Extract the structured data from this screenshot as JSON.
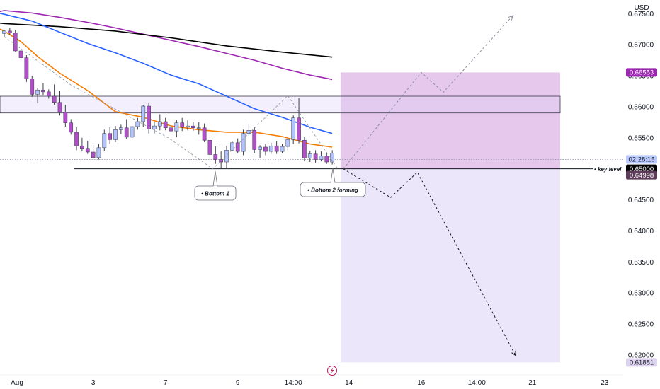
{
  "header": {
    "currency": "USD"
  },
  "chart_data": {
    "type": "candlestick",
    "y_axis": {
      "ticks": [
        "0.67500",
        "0.67000",
        "0.66500",
        "0.66000",
        "0.65500",
        "0.65000",
        "0.64500",
        "0.64000",
        "0.63500",
        "0.63000",
        "0.62500",
        "0.62000"
      ],
      "range": [
        0.6168,
        0.6772
      ]
    },
    "x_axis": {
      "labels": [
        {
          "text": "Aug",
          "bar": 0
        },
        {
          "text": "3",
          "bar": 16
        },
        {
          "text": "7",
          "bar": 29
        },
        {
          "text": "9",
          "bar": 42
        },
        {
          "text": "14:00",
          "bar": 52
        },
        {
          "text": "14",
          "bar": 62
        },
        {
          "text": "16",
          "bar": 75
        },
        {
          "text": "14:00",
          "bar": 85
        },
        {
          "text": "21",
          "bar": 95
        },
        {
          "text": "23",
          "bar": 108
        }
      ]
    },
    "candles": [
      [
        0.6718,
        0.6724,
        0.6713,
        0.6722
      ],
      [
        0.6722,
        0.6727,
        0.6716,
        0.6719
      ],
      [
        0.6719,
        0.6723,
        0.6689,
        0.669
      ],
      [
        0.669,
        0.6696,
        0.6674,
        0.6679
      ],
      [
        0.6679,
        0.6683,
        0.664,
        0.6645
      ],
      [
        0.6645,
        0.665,
        0.6616,
        0.662
      ],
      [
        0.662,
        0.663,
        0.6606,
        0.6627
      ],
      [
        0.6627,
        0.6638,
        0.6618,
        0.6624
      ],
      [
        0.6624,
        0.6628,
        0.6613,
        0.6617
      ],
      [
        0.6617,
        0.6636,
        0.6603,
        0.6607
      ],
      [
        0.6607,
        0.6626,
        0.6586,
        0.6591
      ],
      [
        0.6591,
        0.6603,
        0.6568,
        0.6574
      ],
      [
        0.6574,
        0.658,
        0.6555,
        0.6559
      ],
      [
        0.6559,
        0.6567,
        0.653,
        0.6537
      ],
      [
        0.6537,
        0.655,
        0.6528,
        0.6533
      ],
      [
        0.6533,
        0.6545,
        0.6524,
        0.6527
      ],
      [
        0.6527,
        0.6536,
        0.6514,
        0.6518
      ],
      [
        0.6518,
        0.654,
        0.6515,
        0.6534
      ],
      [
        0.6534,
        0.6563,
        0.6529,
        0.6557
      ],
      [
        0.6557,
        0.6567,
        0.654,
        0.6547
      ],
      [
        0.6547,
        0.6569,
        0.6543,
        0.6563
      ],
      [
        0.6563,
        0.6571,
        0.6556,
        0.6566
      ],
      [
        0.6566,
        0.658,
        0.6548,
        0.6551
      ],
      [
        0.6551,
        0.6573,
        0.6547,
        0.6568
      ],
      [
        0.6568,
        0.6582,
        0.6563,
        0.6576
      ],
      [
        0.6576,
        0.6603,
        0.6567,
        0.6601
      ],
      [
        0.6601,
        0.6606,
        0.6557,
        0.6564
      ],
      [
        0.6564,
        0.6576,
        0.6557,
        0.6569
      ],
      [
        0.6569,
        0.6588,
        0.6562,
        0.6576
      ],
      [
        0.6576,
        0.6582,
        0.6562,
        0.6566
      ],
      [
        0.6566,
        0.6576,
        0.6557,
        0.6561
      ],
      [
        0.6561,
        0.6579,
        0.6551,
        0.6574
      ],
      [
        0.6574,
        0.6582,
        0.6561,
        0.6567
      ],
      [
        0.6567,
        0.6578,
        0.6562,
        0.6569
      ],
      [
        0.6569,
        0.6575,
        0.6561,
        0.6566
      ],
      [
        0.6566,
        0.6575,
        0.6555,
        0.6566
      ],
      [
        0.6566,
        0.6573,
        0.6543,
        0.6546
      ],
      [
        0.6546,
        0.6552,
        0.6516,
        0.6523
      ],
      [
        0.6523,
        0.6536,
        0.6508,
        0.6515
      ],
      [
        0.6515,
        0.6528,
        0.6501,
        0.6511
      ],
      [
        0.6511,
        0.6537,
        0.65,
        0.653
      ],
      [
        0.653,
        0.6544,
        0.6528,
        0.6542
      ],
      [
        0.6542,
        0.6549,
        0.6525,
        0.6528
      ],
      [
        0.6528,
        0.6563,
        0.6522,
        0.6557
      ],
      [
        0.6557,
        0.6572,
        0.6553,
        0.6562
      ],
      [
        0.6562,
        0.6567,
        0.6525,
        0.6531
      ],
      [
        0.6531,
        0.6538,
        0.6518,
        0.6535
      ],
      [
        0.6535,
        0.654,
        0.6522,
        0.6528
      ],
      [
        0.6528,
        0.6542,
        0.6524,
        0.6537
      ],
      [
        0.6537,
        0.6544,
        0.6524,
        0.6528
      ],
      [
        0.6528,
        0.654,
        0.6525,
        0.6536
      ],
      [
        0.6536,
        0.655,
        0.653,
        0.6547
      ],
      [
        0.6547,
        0.6586,
        0.654,
        0.6582
      ],
      [
        0.6582,
        0.6614,
        0.6541,
        0.6546
      ],
      [
        0.6546,
        0.6551,
        0.6512,
        0.6517
      ],
      [
        0.6517,
        0.6529,
        0.6511,
        0.6524
      ],
      [
        0.6524,
        0.653,
        0.651,
        0.6515
      ],
      [
        0.6515,
        0.6528,
        0.6512,
        0.6521
      ],
      [
        0.6521,
        0.6526,
        0.6508,
        0.6511
      ],
      [
        0.6511,
        0.653,
        0.6507,
        0.6525
      ]
    ],
    "ema_series": [
      {
        "color": "#9c27b0",
        "points": [
          [
            -1,
            0.6753
          ],
          [
            0,
            0.6755
          ],
          [
            5,
            0.6751
          ],
          [
            10,
            0.6744
          ],
          [
            15,
            0.6736
          ],
          [
            20,
            0.6727
          ],
          [
            25,
            0.6717
          ],
          [
            30,
            0.6707
          ],
          [
            35,
            0.6697
          ],
          [
            40,
            0.6686
          ],
          [
            45,
            0.6675
          ],
          [
            50,
            0.6662
          ],
          [
            55,
            0.6651
          ],
          [
            59,
            0.6644
          ]
        ]
      },
      {
        "color": "#000000",
        "points": [
          [
            -1,
            0.6735
          ],
          [
            0,
            0.6734
          ],
          [
            10,
            0.6729
          ],
          [
            20,
            0.6722
          ],
          [
            30,
            0.6711
          ],
          [
            40,
            0.6698
          ],
          [
            50,
            0.6688
          ],
          [
            59,
            0.668
          ]
        ]
      },
      {
        "color": "#2962ff",
        "points": [
          [
            -1,
            0.6751
          ],
          [
            0,
            0.6749
          ],
          [
            5,
            0.6738
          ],
          [
            10,
            0.672
          ],
          [
            15,
            0.6702
          ],
          [
            20,
            0.6687
          ],
          [
            25,
            0.667
          ],
          [
            30,
            0.6651
          ],
          [
            35,
            0.6637
          ],
          [
            40,
            0.6617
          ],
          [
            45,
            0.6597
          ],
          [
            50,
            0.6583
          ],
          [
            55,
            0.6567
          ],
          [
            59,
            0.6557
          ]
        ]
      },
      {
        "color": "#f57c00",
        "points": [
          [
            -1,
            0.6726
          ],
          [
            0,
            0.6722
          ],
          [
            3,
            0.6705
          ],
          [
            6,
            0.6681
          ],
          [
            10,
            0.6654
          ],
          [
            15,
            0.6626
          ],
          [
            20,
            0.6592
          ],
          [
            25,
            0.6583
          ],
          [
            30,
            0.6569
          ],
          [
            35,
            0.6563
          ],
          [
            40,
            0.6559
          ],
          [
            45,
            0.6559
          ],
          [
            50,
            0.6552
          ],
          [
            55,
            0.654
          ],
          [
            59,
            0.6535
          ]
        ]
      }
    ],
    "projection_box": {
      "top": 0.66553,
      "bottom": 0.61881,
      "split": 0.65,
      "start_bar": 60.5,
      "end_bar": 100
    },
    "resistance_zone": {
      "top": 0.6617,
      "bottom": 0.659,
      "start_bar": -1,
      "end_bar": 100
    },
    "key_level": {
      "price": 0.65,
      "start_bar": 12.5,
      "end_bar": 105
    },
    "bullish_path": [
      [
        61,
        0.65
      ],
      [
        75,
        0.66553
      ],
      [
        79,
        0.66234
      ],
      [
        91.5,
        0.6747
      ]
    ],
    "bearish_path": [
      [
        61,
        0.65
      ],
      [
        69.5,
        0.64538
      ],
      [
        74.3,
        0.64946
      ],
      [
        92,
        0.6199
      ]
    ],
    "historical_path": [
      [
        0,
        0.6713
      ],
      [
        12,
        0.6635
      ],
      [
        29.5,
        0.655
      ],
      [
        37.5,
        0.65
      ],
      [
        51,
        0.6618
      ],
      [
        60,
        0.65
      ]
    ],
    "labels": {
      "key_level": "• key level",
      "bottom1": "• Bottom 1",
      "bottom2": "• Bottom 2 forming"
    },
    "price_tags": [
      {
        "text": "0.66553",
        "price": 0.66553,
        "bg": "#9c27b0",
        "fg": "#ffffff"
      },
      {
        "text": "02:28:15",
        "price": 0.65151,
        "bg": "#bbcafe",
        "fg": "#131722"
      },
      {
        "text": "0.65000",
        "price": 0.65,
        "bg": "#000000",
        "fg": "#ffffff"
      },
      {
        "text": "0.64998",
        "price": 0.64898,
        "bg": "#5d3c5a",
        "fg": "#ffffff"
      },
      {
        "text": "0.61881",
        "price": 0.61881,
        "bg": "#ddd3ee",
        "fg": "#131722"
      }
    ],
    "colors": {
      "bull_candle": "#b3c3fb",
      "bear_candle": "#b14fc7",
      "box_upper": "#e5c8eb",
      "box_lower": "#ebe6f9"
    }
  }
}
